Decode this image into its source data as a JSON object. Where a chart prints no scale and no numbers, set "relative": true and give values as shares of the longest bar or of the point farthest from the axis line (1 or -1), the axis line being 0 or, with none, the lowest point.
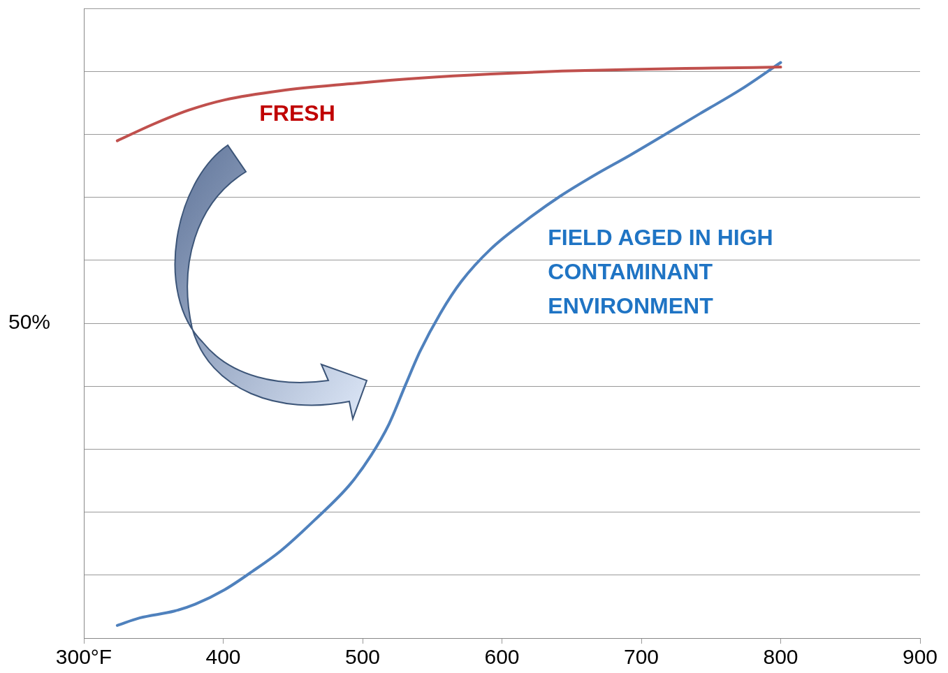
{
  "chart_data": {
    "type": "line",
    "relative": true,
    "xlim": [
      300,
      900
    ],
    "xticks": [
      {
        "value": 300,
        "label": "300°F"
      },
      400,
      500,
      600,
      700,
      800,
      900
    ],
    "grid": "y",
    "legend": false,
    "marker": "none",
    "line_style": "solid",
    "annotations": [
      "50%"
    ],
    "series": [
      {
        "name": "FRESH",
        "color": "#c0504d",
        "x": [
          324,
          350,
          375,
          401,
          441,
          491,
          542,
          592,
          643,
          693,
          743,
          800
        ],
        "values": [
          0.864,
          0.893,
          0.917,
          0.935,
          0.951,
          0.963,
          0.973,
          0.98,
          0.985,
          0.988,
          0.99,
          0.992
        ]
      },
      {
        "name": "FIELD AGED IN HIGH CONTAMINANT ENVIRONMENT",
        "color": "#4f81bd",
        "x": [
          324,
          340,
          365,
          380,
          401,
          421,
          441,
          466,
          491,
          506,
          519,
          531,
          541,
          556,
          571,
          592,
          617,
          642,
          667,
          692,
          742,
          772,
          800
        ],
        "values": [
          0.022,
          0.035,
          0.047,
          0.059,
          0.084,
          0.116,
          0.151,
          0.206,
          0.267,
          0.317,
          0.372,
          0.441,
          0.497,
          0.565,
          0.62,
          0.676,
          0.725,
          0.768,
          0.805,
          0.839,
          0.911,
          0.954,
          1
        ]
      }
    ]
  }
}
